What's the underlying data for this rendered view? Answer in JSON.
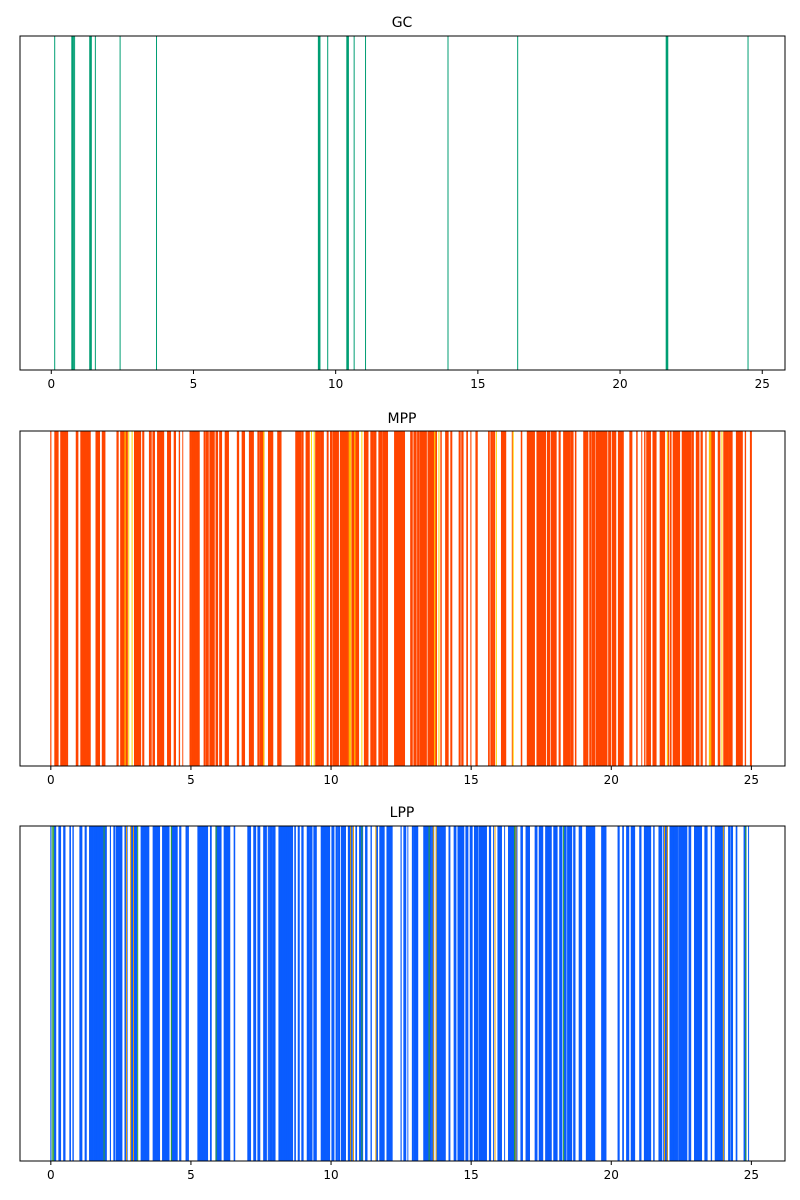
{
  "chart_data": [
    {
      "type": "event",
      "title": "GC",
      "xlim": [
        -1.1,
        25.8
      ],
      "xticks": [
        "0",
        "5",
        "10",
        "15",
        "20",
        "25"
      ],
      "grid": false,
      "colors": {
        "main": "#009e73"
      },
      "series": [
        {
          "color": "#009e73",
          "thin": [
            0.12,
            0.82,
            1.55,
            2.42,
            3.7,
            9.72,
            10.65,
            11.05,
            13.95,
            16.4,
            24.5
          ],
          "thick": [
            0.75,
            1.38,
            9.42,
            10.42,
            21.65
          ]
        }
      ]
    },
    {
      "type": "event",
      "title": "MPP",
      "xlim": [
        -1.1,
        26.2
      ],
      "xticks": [
        "0",
        "5",
        "10",
        "15",
        "20",
        "25"
      ],
      "grid": false,
      "colors": {
        "main": "#ff4500",
        "accent": "#ffd700"
      },
      "series": [
        {
          "color": "#ff4500",
          "range": [
            0.0,
            25.0
          ],
          "density": "dense"
        },
        {
          "color": "#ffd700",
          "thin": [
            2.65,
            2.78,
            2.9,
            7.6,
            9.3,
            9.4,
            10.65,
            10.7,
            10.85,
            11.1,
            13.7,
            13.85,
            15.9,
            16.5,
            22.0,
            23.5,
            23.55,
            23.95
          ]
        }
      ]
    },
    {
      "type": "event",
      "title": "LPP",
      "xlim": [
        -1.1,
        26.2
      ],
      "xticks": [
        "0",
        "5",
        "10",
        "15",
        "20",
        "25"
      ],
      "grid": false,
      "colors": {
        "main": "#0a5cff",
        "accent": "#e69f00"
      },
      "series": [
        {
          "color": "#0a5cff",
          "range": [
            0.0,
            24.9
          ],
          "density": "dense"
        },
        {
          "color": "#e69f00",
          "thin": [
            2.7,
            2.85,
            2.95,
            10.7,
            10.8,
            11.6,
            13.65,
            13.75,
            15.85,
            16.6,
            21.9,
            22.0,
            24.0
          ]
        },
        {
          "color": "#2ca02c",
          "thin": [
            0.05,
            0.1,
            1.9,
            3.1,
            4.3,
            5.9,
            11.1,
            13.5,
            16.55,
            18.3,
            24.8
          ]
        }
      ]
    }
  ]
}
